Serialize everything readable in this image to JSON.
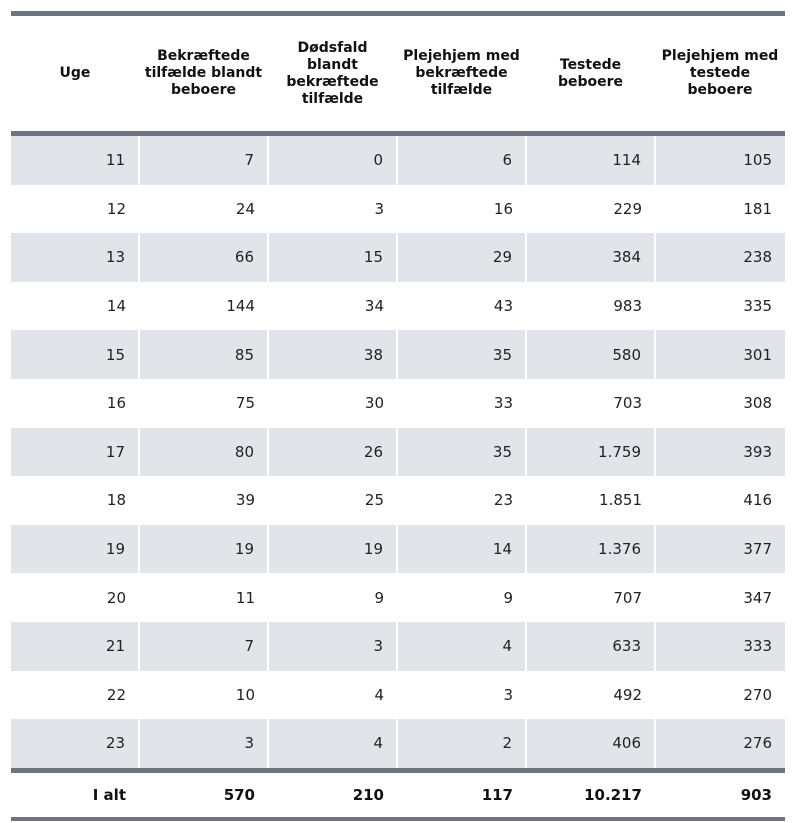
{
  "table": {
    "headers": [
      "Uge",
      "Bekræftede tilfælde blandt beboere",
      "Dødsfald blandt bekræftede tilfælde",
      "Plejehjem med bekræftede tilfælde",
      "Testede beboere",
      "Plejehjem med testede beboere"
    ],
    "rows": [
      [
        "11",
        "7",
        "0",
        "6",
        "114",
        "105"
      ],
      [
        "12",
        "24",
        "3",
        "16",
        "229",
        "181"
      ],
      [
        "13",
        "66",
        "15",
        "29",
        "384",
        "238"
      ],
      [
        "14",
        "144",
        "34",
        "43",
        "983",
        "335"
      ],
      [
        "15",
        "85",
        "38",
        "35",
        "580",
        "301"
      ],
      [
        "16",
        "75",
        "30",
        "33",
        "703",
        "308"
      ],
      [
        "17",
        "80",
        "26",
        "35",
        "1.759",
        "393"
      ],
      [
        "18",
        "39",
        "25",
        "23",
        "1.851",
        "416"
      ],
      [
        "19",
        "19",
        "19",
        "14",
        "1.376",
        "377"
      ],
      [
        "20",
        "11",
        "9",
        "9",
        "707",
        "347"
      ],
      [
        "21",
        "7",
        "3",
        "4",
        "633",
        "333"
      ],
      [
        "22",
        "10",
        "4",
        "3",
        "492",
        "270"
      ],
      [
        "23",
        "3",
        "4",
        "2",
        "406",
        "276"
      ]
    ],
    "total": [
      "I alt",
      "570",
      "210",
      "117",
      "10.217",
      "903"
    ]
  },
  "colors": {
    "rule": "#6e7580",
    "row_shade": "#e1e5ea"
  }
}
